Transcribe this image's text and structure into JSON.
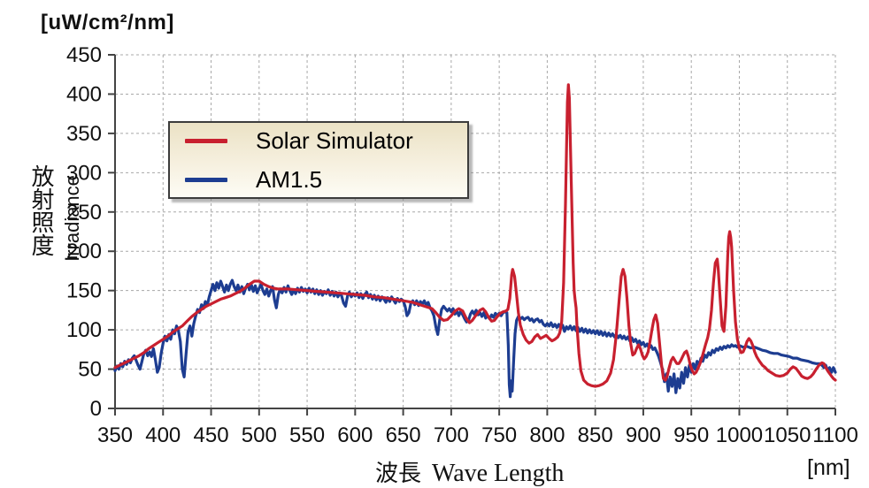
{
  "figure": {
    "unit_title": "[uW/cm²/nm]",
    "y_axis_label_jp": "放射照度",
    "y_axis_label_en": "Irradiance",
    "x_axis_label_jp": "波長",
    "x_axis_label_en": "Wave Length",
    "x_axis_unit": "[nm]"
  },
  "legend": {
    "items": [
      {
        "label": "Solar Simulator",
        "color": "#c8202f"
      },
      {
        "label": "AM1.5",
        "color": "#1d3d91"
      }
    ]
  },
  "colors": {
    "axis": "#444444",
    "grid": "#a8a8a8",
    "text": "#111111",
    "background": "#ffffff"
  },
  "chart_data": {
    "type": "line",
    "title": "[uW/cm²/nm]",
    "xlabel": "波長 Wave Length [nm]",
    "ylabel": "放射照度 Irradiance [uW/cm²/nm]",
    "xlim": [
      350,
      1100
    ],
    "ylim": [
      0,
      450
    ],
    "xticks": [
      350,
      400,
      450,
      500,
      550,
      600,
      650,
      700,
      750,
      800,
      850,
      900,
      950,
      1000,
      1050,
      1100
    ],
    "yticks": [
      0,
      50,
      100,
      150,
      200,
      250,
      300,
      350,
      400,
      450
    ],
    "grid": true,
    "grid_style": "dashed",
    "legend_position": "top-left",
    "series": [
      {
        "name": "AM1.5",
        "color": "#1d3d91",
        "x": [
          350,
          352,
          354,
          356,
          358,
          360,
          362,
          364,
          366,
          368,
          370,
          372,
          374,
          376,
          378,
          380,
          382,
          384,
          386,
          388,
          390,
          392,
          394,
          396,
          398,
          400,
          402,
          404,
          406,
          408,
          410,
          412,
          414,
          416,
          418,
          420,
          422,
          424,
          426,
          428,
          430,
          432,
          434,
          436,
          438,
          440,
          442,
          444,
          446,
          448,
          450,
          452,
          454,
          456,
          458,
          460,
          462,
          464,
          466,
          468,
          470,
          472,
          474,
          476,
          478,
          480,
          482,
          484,
          486,
          488,
          490,
          492,
          494,
          496,
          498,
          500,
          502,
          504,
          506,
          508,
          510,
          512,
          514,
          516,
          518,
          520,
          522,
          524,
          526,
          528,
          530,
          532,
          534,
          536,
          538,
          540,
          542,
          544,
          546,
          548,
          550,
          552,
          554,
          556,
          558,
          560,
          562,
          564,
          566,
          568,
          570,
          572,
          574,
          576,
          578,
          580,
          582,
          584,
          586,
          588,
          590,
          592,
          594,
          596,
          598,
          600,
          602,
          604,
          606,
          608,
          610,
          612,
          614,
          616,
          618,
          620,
          622,
          624,
          626,
          628,
          630,
          632,
          634,
          636,
          638,
          640,
          642,
          644,
          646,
          648,
          650,
          652,
          654,
          656,
          658,
          660,
          662,
          664,
          666,
          668,
          670,
          672,
          674,
          676,
          678,
          680,
          682,
          684,
          686,
          688,
          690,
          692,
          694,
          696,
          698,
          700,
          702,
          704,
          706,
          708,
          710,
          712,
          714,
          716,
          718,
          720,
          722,
          724,
          726,
          728,
          730,
          732,
          734,
          736,
          738,
          740,
          742,
          744,
          746,
          748,
          750,
          752,
          754,
          756,
          758,
          759.5,
          760.5,
          761.5,
          762.5,
          763.5,
          765,
          766.5,
          768,
          770,
          772,
          774,
          776,
          778,
          780,
          782,
          784,
          786,
          788,
          790,
          792,
          794,
          796,
          798,
          800,
          802,
          804,
          806,
          808,
          810,
          812,
          814,
          816,
          818,
          820,
          822,
          824,
          826,
          828,
          830,
          832,
          834,
          836,
          838,
          840,
          842,
          844,
          846,
          848,
          850,
          852,
          854,
          856,
          858,
          860,
          862,
          864,
          866,
          868,
          870,
          872,
          874,
          876,
          878,
          880,
          882,
          884,
          886,
          888,
          890,
          892,
          894,
          896,
          898,
          900,
          902,
          904,
          906,
          908,
          910,
          912,
          914,
          916,
          918,
          920,
          922,
          924,
          926,
          928,
          930,
          932,
          934,
          936,
          938,
          940,
          942,
          944,
          946,
          948,
          950,
          952,
          954,
          956,
          958,
          960,
          962,
          964,
          966,
          968,
          970,
          972,
          974,
          976,
          978,
          980,
          982,
          984,
          986,
          988,
          990,
          992,
          994,
          996,
          998,
          1000,
          1004,
          1008,
          1012,
          1016,
          1020,
          1024,
          1028,
          1032,
          1036,
          1040,
          1044,
          1048,
          1052,
          1056,
          1060,
          1064,
          1068,
          1072,
          1076,
          1080,
          1084,
          1086,
          1088,
          1090,
          1092,
          1094,
          1096,
          1098,
          1100
        ],
        "values": [
          48,
          54,
          50,
          57,
          53,
          60,
          56,
          62,
          58,
          64,
          67,
          61,
          55,
          50,
          60,
          70,
          74,
          67,
          72,
          66,
          76,
          62,
          46,
          52,
          70,
          83,
          92,
          86,
          94,
          88,
          100,
          95,
          105,
          99,
          85,
          50,
          40,
          70,
          98,
          105,
          92,
          108,
          118,
          126,
          122,
          132,
          127,
          136,
          131,
          142,
          150,
          158,
          150,
          160,
          153,
          162,
          155,
          148,
          157,
          150,
          158,
          163,
          155,
          150,
          157,
          148,
          155,
          146,
          153,
          158,
          151,
          157,
          149,
          156,
          147,
          153,
          158,
          150,
          145,
          152,
          143,
          150,
          155,
          138,
          128,
          145,
          152,
          147,
          154,
          148,
          156,
          150,
          145,
          151,
          146,
          153,
          148,
          154,
          149,
          152,
          147,
          153,
          148,
          152,
          146,
          151,
          145,
          150,
          144,
          149,
          146,
          151,
          144,
          149,
          143,
          148,
          142,
          147,
          143,
          134,
          130,
          143,
          148,
          142,
          146,
          143,
          147,
          141,
          146,
          140,
          145,
          148,
          141,
          145,
          139,
          144,
          138,
          143,
          137,
          142,
          139,
          135,
          141,
          136,
          142,
          138,
          134,
          140,
          136,
          139,
          137,
          130,
          118,
          122,
          134,
          137,
          132,
          137,
          131,
          136,
          133,
          137,
          131,
          135,
          128,
          124,
          118,
          104,
          94,
          112,
          126,
          130,
          127,
          124,
          127,
          123,
          127,
          120,
          124,
          118,
          124,
          119,
          114,
          110,
          112,
          120,
          124,
          120,
          125,
          119,
          122,
          117,
          122,
          115,
          118,
          114,
          119,
          116,
          121,
          118,
          121,
          118,
          122,
          123,
          122,
          80,
          30,
          15,
          35,
          22,
          60,
          95,
          112,
          117,
          114,
          116,
          113,
          115,
          116,
          112,
          114,
          110,
          113,
          114,
          110,
          112,
          107,
          105,
          108,
          105,
          109,
          104,
          107,
          103,
          107,
          102,
          106,
          98,
          104,
          101,
          105,
          100,
          104,
          99,
          103,
          98,
          102,
          97,
          101,
          96,
          100,
          96,
          99,
          95,
          99,
          94,
          98,
          93,
          97,
          92,
          96,
          92,
          95,
          91,
          94,
          90,
          93,
          89,
          92,
          88,
          91,
          86,
          90,
          85,
          88,
          83,
          86,
          81,
          84,
          79,
          82,
          77,
          80,
          75,
          77,
          72,
          66,
          58,
          50,
          34,
          44,
          22,
          40,
          28,
          44,
          20,
          38,
          26,
          46,
          32,
          52,
          40,
          55,
          46,
          57,
          50,
          60,
          55,
          64,
          60,
          68,
          65,
          71,
          68,
          74,
          71,
          76,
          74,
          78,
          75,
          79,
          77,
          80,
          78,
          81,
          79,
          80,
          78,
          80,
          78,
          79,
          77,
          78,
          76,
          74,
          73,
          71,
          70,
          70,
          68,
          67,
          66,
          64,
          64,
          62,
          61,
          60,
          58,
          57,
          57,
          55,
          52,
          55,
          48,
          52,
          46,
          52,
          46
        ],
        "line_width": 3.2
      },
      {
        "name": "Solar Simulator",
        "color": "#c8202f",
        "x": [
          350,
          355,
          360,
          365,
          370,
          375,
          380,
          385,
          390,
          395,
          400,
          405,
          410,
          415,
          420,
          425,
          430,
          435,
          440,
          445,
          450,
          455,
          460,
          465,
          470,
          475,
          480,
          485,
          490,
          495,
          500,
          505,
          510,
          515,
          520,
          530,
          540,
          550,
          560,
          570,
          580,
          590,
          600,
          610,
          620,
          630,
          640,
          650,
          655,
          660,
          665,
          670,
          675,
          680,
          684,
          688,
          692,
          696,
          700,
          704,
          708,
          712,
          716,
          719,
          722,
          726,
          730,
          733,
          736,
          739,
          742,
          745,
          748,
          751,
          754,
          757,
          759,
          761,
          763,
          764,
          766,
          768,
          770,
          772,
          775,
          778,
          781,
          784,
          787,
          790,
          793,
          796,
          799,
          802,
          805,
          808,
          811,
          813,
          815,
          817,
          819,
          821,
          822,
          823,
          825,
          827,
          828,
          829,
          830,
          831,
          833,
          835,
          838,
          842,
          846,
          850,
          854,
          858,
          862,
          866,
          869,
          872,
          875,
          877,
          879,
          881,
          883,
          885,
          887,
          889,
          891,
          893,
          895,
          897,
          899,
          901,
          903,
          905,
          907,
          909,
          911,
          913,
          915,
          917,
          919,
          921,
          923,
          925,
          927,
          929,
          931,
          933,
          935,
          937,
          939,
          941,
          943,
          945,
          947,
          949,
          951,
          953,
          955,
          957,
          959,
          961,
          963,
          965,
          967,
          969,
          971,
          973,
          975,
          977,
          978,
          980,
          982,
          984,
          986,
          988,
          989,
          990,
          991,
          992,
          994,
          996,
          998,
          1000,
          1002,
          1004,
          1006,
          1008,
          1010,
          1012,
          1014,
          1016,
          1018,
          1021,
          1024,
          1027,
          1030,
          1034,
          1038,
          1042,
          1046,
          1050,
          1053,
          1056,
          1059,
          1062,
          1065,
          1068,
          1071,
          1074,
          1077,
          1080,
          1083,
          1086,
          1088,
          1090,
          1093,
          1096,
          1098,
          1100
        ],
        "values": [
          52,
          55,
          58,
          61,
          64,
          67,
          71,
          76,
          80,
          84,
          88,
          92,
          97,
          101,
          105,
          111,
          117,
          122,
          126,
          130,
          133,
          136,
          139,
          141,
          143,
          146,
          149,
          153,
          158,
          162,
          162,
          158,
          155,
          153,
          152,
          152,
          151,
          150,
          149,
          148,
          147,
          146,
          145,
          144,
          142,
          141,
          139,
          137,
          136,
          135,
          133,
          131,
          129,
          127,
          122,
          116,
          112,
          113,
          118,
          124,
          127,
          124,
          114,
          109,
          112,
          119,
          125,
          127,
          123,
          116,
          111,
          112,
          117,
          121,
          123,
          124,
          126,
          140,
          170,
          177,
          168,
          145,
          122,
          106,
          94,
          87,
          83,
          85,
          91,
          94,
          89,
          91,
          93,
          89,
          86,
          88,
          91,
          96,
          110,
          160,
          260,
          390,
          412,
          395,
          290,
          185,
          150,
          138,
          128,
          105,
          70,
          48,
          36,
          31,
          29,
          28,
          29,
          31,
          35,
          45,
          62,
          95,
          140,
          168,
          177,
          168,
          140,
          105,
          82,
          68,
          70,
          76,
          81,
          76,
          68,
          63,
          66,
          72,
          85,
          100,
          113,
          119,
          108,
          82,
          55,
          38,
          36,
          42,
          52,
          61,
          65,
          61,
          57,
          57,
          61,
          66,
          71,
          73,
          66,
          55,
          48,
          44,
          46,
          51,
          57,
          64,
          73,
          82,
          90,
          102,
          125,
          160,
          185,
          190,
          178,
          140,
          105,
          98,
          130,
          195,
          218,
          225,
          218,
          205,
          150,
          110,
          88,
          76,
          71,
          72,
          78,
          85,
          89,
          86,
          80,
          72,
          66,
          60,
          55,
          52,
          48,
          45,
          42,
          41,
          42,
          45,
          50,
          53,
          51,
          46,
          41,
          39,
          38,
          40,
          44,
          50,
          55,
          58,
          57,
          52,
          46,
          41,
          38,
          36
        ],
        "line_width": 3.2
      }
    ]
  }
}
